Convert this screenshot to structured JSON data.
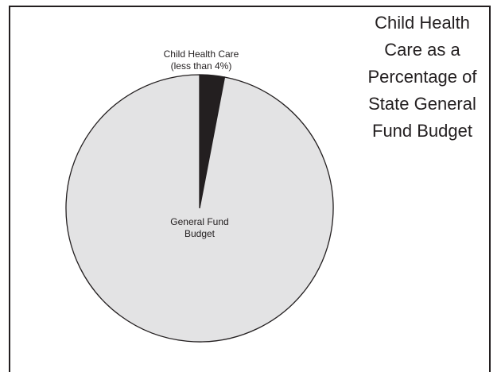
{
  "chart_data": {
    "type": "pie",
    "title_lines": [
      "Child Health",
      "Care as a",
      "Percentage of",
      "State General",
      "Fund Budget"
    ],
    "slices": [
      {
        "label_lines": [
          "Child Health Care",
          "(less than 4%)"
        ],
        "value": 3,
        "color": "#231f20"
      },
      {
        "label_lines": [
          "General Fund",
          "Budget"
        ],
        "value": 97,
        "color": "#e3e3e4"
      }
    ],
    "legend": "none"
  }
}
